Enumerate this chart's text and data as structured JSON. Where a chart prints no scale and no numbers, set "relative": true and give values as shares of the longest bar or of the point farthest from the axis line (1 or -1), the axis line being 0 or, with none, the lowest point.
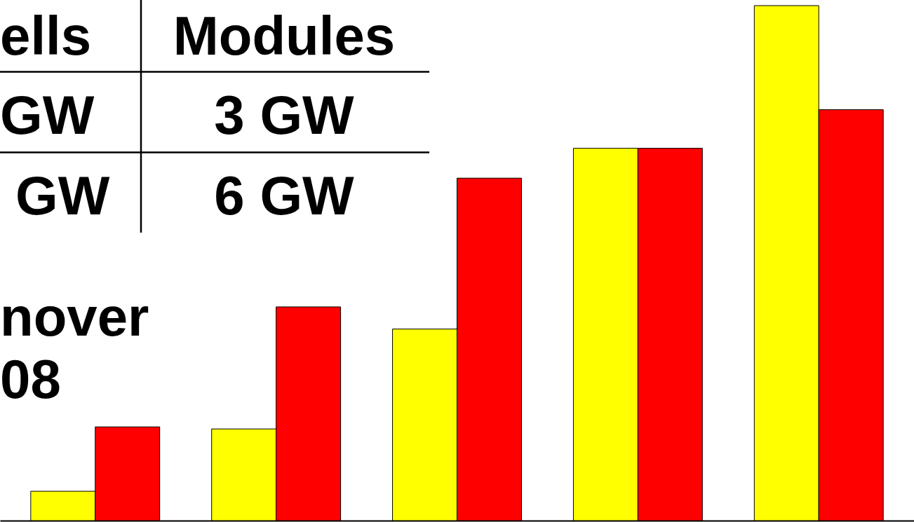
{
  "chart_data": {
    "type": "bar",
    "relative": true,
    "categories": [
      null,
      null,
      null,
      null,
      null
    ],
    "series": [
      {
        "color": "#ffff00",
        "values": [
          0.057,
          0.178,
          0.372,
          0.723,
          1
        ]
      },
      {
        "color": "#ff0000",
        "values": [
          0.182,
          0.415,
          0.665,
          0.723,
          0.798
        ]
      }
    ],
    "annotations": [
      "ells",
      "Modules",
      "GW",
      "3 GW",
      "GW",
      "6 GW",
      "nover",
      "08"
    ]
  }
}
